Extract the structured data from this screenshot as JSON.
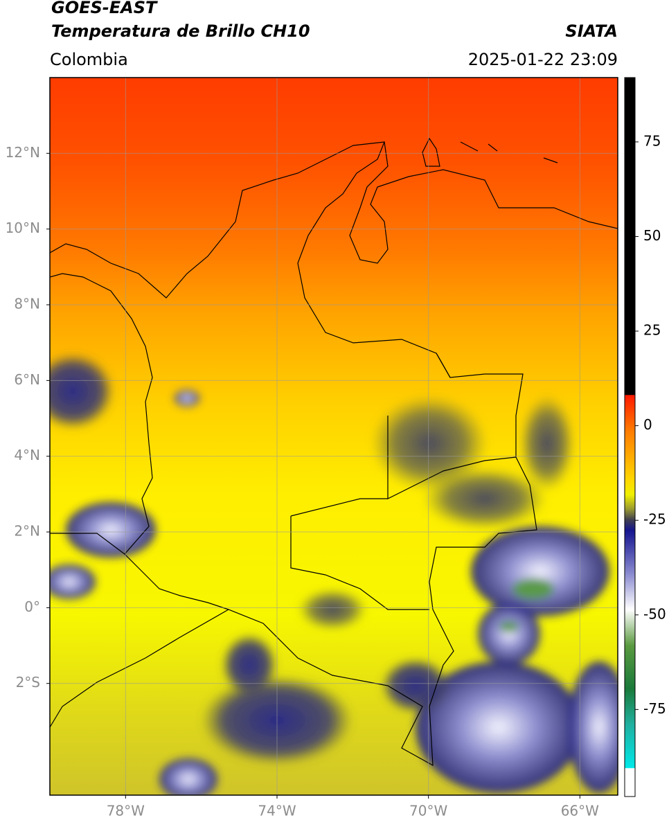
{
  "header": {
    "title": "GOES-EAST",
    "subtitle": "Temperatura de Brillo CH10",
    "region": "Colombia",
    "source": "SIATA",
    "timestamp": "2025-01-22 23:09"
  },
  "map": {
    "xlim": [
      -80,
      -65
    ],
    "ylim": [
      -4.95,
      14
    ],
    "xticks": [
      {
        "value": -78,
        "label": "78°W"
      },
      {
        "value": -74,
        "label": "74°W"
      },
      {
        "value": -70,
        "label": "70°W"
      },
      {
        "value": -66,
        "label": "66°W"
      }
    ],
    "yticks": [
      {
        "value": 12,
        "label": "12°N"
      },
      {
        "value": 10,
        "label": "10°N"
      },
      {
        "value": 8,
        "label": "8°N"
      },
      {
        "value": 6,
        "label": "6°N"
      },
      {
        "value": 4,
        "label": "4°N"
      },
      {
        "value": 2,
        "label": "2°N"
      },
      {
        "value": 0,
        "label": "0°"
      },
      {
        "value": -2,
        "label": "2°S"
      }
    ],
    "grid": true
  },
  "colorbar": {
    "lim": [
      -98,
      92
    ],
    "ticks": [
      75,
      50,
      25,
      0,
      -25,
      -50,
      -75
    ]
  }
}
